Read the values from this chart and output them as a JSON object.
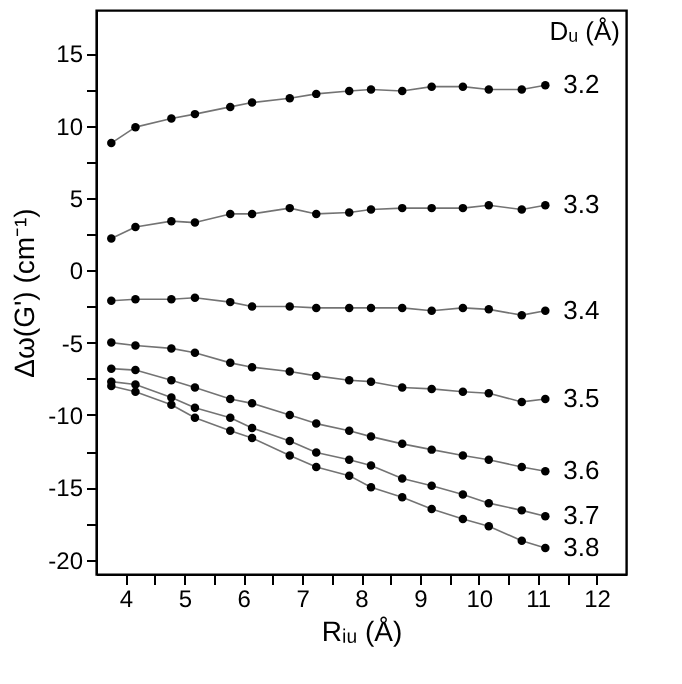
{
  "chart_data": {
    "type": "line",
    "xlabel": "Rᵢᵤ (Å)",
    "ylabel": "Δω(G') (cm⁻¹)",
    "legend_title": "Dᵤ (Å)",
    "x": [
      3.76,
      4.17,
      4.78,
      5.18,
      5.78,
      6.15,
      6.79,
      7.24,
      7.8,
      8.17,
      8.7,
      9.2,
      9.73,
      10.17,
      10.73,
      11.13
    ],
    "series": [
      {
        "name": "3.2",
        "color": "#000000",
        "values": [
          8.8,
          9.9,
          10.5,
          10.8,
          11.3,
          11.6,
          11.9,
          12.2,
          12.4,
          12.5,
          12.4,
          12.7,
          12.7,
          12.5,
          12.5,
          12.8
        ]
      },
      {
        "name": "3.3",
        "color": "#000000",
        "values": [
          2.2,
          3.0,
          3.4,
          3.3,
          3.9,
          3.9,
          4.3,
          3.9,
          4.0,
          4.2,
          4.3,
          4.3,
          4.3,
          4.5,
          4.2,
          4.5
        ]
      },
      {
        "name": "3.4",
        "color": "#000000",
        "values": [
          -2.1,
          -2.0,
          -2.0,
          -1.9,
          -2.2,
          -2.5,
          -2.5,
          -2.6,
          -2.6,
          -2.6,
          -2.6,
          -2.8,
          -2.6,
          -2.7,
          -3.1,
          -2.8
        ]
      },
      {
        "name": "3.5",
        "color": "#000000",
        "values": [
          -5.0,
          -5.2,
          -5.4,
          -5.7,
          -6.4,
          -6.7,
          -7.0,
          -7.3,
          -7.6,
          -7.7,
          -8.1,
          -8.2,
          -8.4,
          -8.5,
          -9.1,
          -8.9
        ]
      },
      {
        "name": "3.6",
        "color": "#000000",
        "values": [
          -6.8,
          -6.9,
          -7.6,
          -8.1,
          -8.9,
          -9.2,
          -10.0,
          -10.6,
          -11.1,
          -11.5,
          -12.0,
          -12.4,
          -12.8,
          -13.1,
          -13.6,
          -13.9
        ]
      },
      {
        "name": "3.7",
        "color": "#000000",
        "values": [
          -7.7,
          -7.9,
          -8.8,
          -9.5,
          -10.2,
          -10.9,
          -11.8,
          -12.6,
          -13.1,
          -13.5,
          -14.4,
          -14.9,
          -15.5,
          -16.1,
          -16.6,
          -17.0
        ]
      },
      {
        "name": "3.8",
        "color": "#000000",
        "values": [
          -8.0,
          -8.4,
          -9.3,
          -10.2,
          -11.1,
          -11.6,
          -12.8,
          -13.6,
          -14.2,
          -15.0,
          -15.7,
          -16.5,
          -17.2,
          -17.7,
          -18.7,
          -19.2
        ]
      }
    ],
    "xlim": [
      3.5,
      12.5
    ],
    "ylim": [
      -21,
      18
    ],
    "xticks": [
      4,
      {
        "value": 4.5,
        "label": null
      },
      5,
      {
        "value": 5.5,
        "label": null
      },
      6,
      {
        "value": 6.5,
        "label": null
      },
      7,
      {
        "value": 7.5,
        "label": null
      },
      8,
      {
        "value": 8.5,
        "label": null
      },
      9,
      {
        "value": 9.5,
        "label": null
      },
      10,
      {
        "value": 10.5,
        "label": null
      },
      11,
      {
        "value": 11.5,
        "label": null
      },
      12
    ],
    "yticks": [
      {
        "value": -20,
        "label": "-20"
      },
      {
        "value": -17.5,
        "label": null
      },
      -15,
      {
        "value": -12.5,
        "label": null
      },
      -10,
      {
        "value": -7.5,
        "label": null
      },
      -5,
      {
        "value": -2.5,
        "label": null
      },
      0,
      {
        "value": 2.5,
        "label": null
      },
      5,
      {
        "value": 7.5,
        "label": null
      },
      10,
      {
        "value": 12.5,
        "label": null
      },
      15
    ],
    "marker": "circle",
    "line_style": "solid",
    "grid": false
  }
}
